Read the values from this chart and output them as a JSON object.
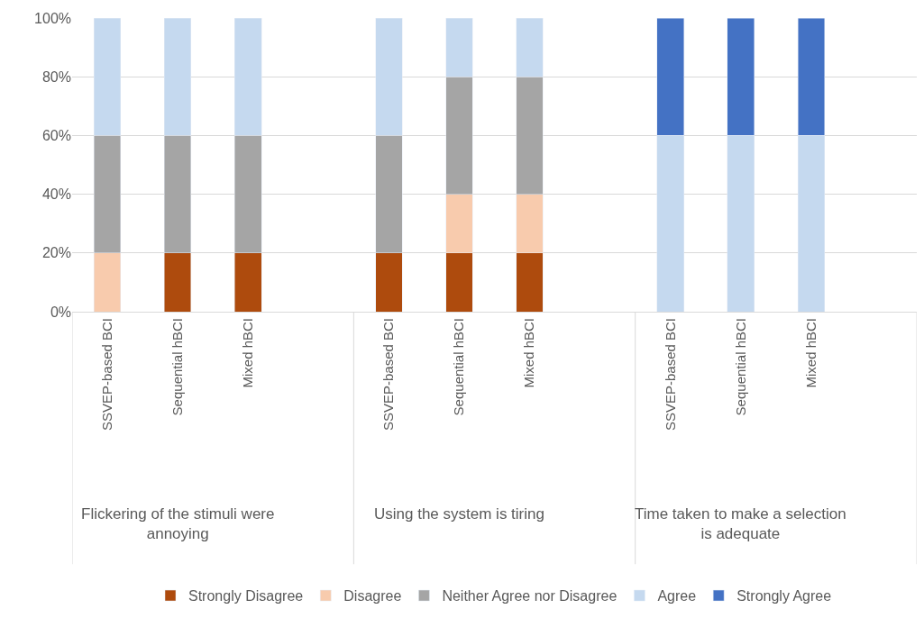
{
  "chart_data": {
    "type": "bar",
    "stacked": true,
    "categories": [
      "SSVEP-based BCI",
      "Sequential hBCI",
      "Mixed hBCI",
      null,
      "SSVEP-based BCI",
      "Sequential hBCI",
      "Mixed hBCI",
      null,
      "SSVEP-based BCI",
      "Sequential hBCI",
      "Mixed hBCI"
    ],
    "annotations": [
      "Flickering of the stimuli were annoying",
      "Using the system is tiring",
      "Time taken to make a selection is adequate"
    ],
    "series": [
      {
        "name": "Strongly Disagree",
        "color": "#ae4b0d",
        "values": [
          null,
          20,
          20,
          null,
          20,
          20,
          20,
          null,
          null,
          null,
          null
        ]
      },
      {
        "name": "Disagree",
        "color": "#f8cbad",
        "values": [
          20,
          null,
          null,
          null,
          null,
          20,
          20,
          null,
          null,
          null,
          null
        ]
      },
      {
        "name": "Neither Agree nor Disagree",
        "color": "#a5a5a5",
        "values": [
          40,
          40,
          40,
          null,
          40,
          40,
          40,
          null,
          null,
          null,
          null
        ]
      },
      {
        "name": "Agree",
        "color": "#c5d9ef",
        "values": [
          40,
          40,
          40,
          null,
          40,
          20,
          20,
          null,
          60,
          60,
          60
        ]
      },
      {
        "name": "Strongly Agree",
        "color": "#4472c4",
        "values": [
          null,
          null,
          null,
          null,
          null,
          null,
          null,
          null,
          40,
          40,
          40
        ]
      }
    ],
    "ylim": [
      0,
      100
    ],
    "yticks": [
      {
        "value": 0,
        "label": "0%"
      },
      {
        "value": 20,
        "label": "20%"
      },
      {
        "value": 40,
        "label": "40%"
      },
      {
        "value": 60,
        "label": "60%"
      },
      {
        "value": 80,
        "label": "80%"
      },
      {
        "value": 100,
        "label": "100%"
      }
    ],
    "grid": "y",
    "legend": "bottom"
  }
}
